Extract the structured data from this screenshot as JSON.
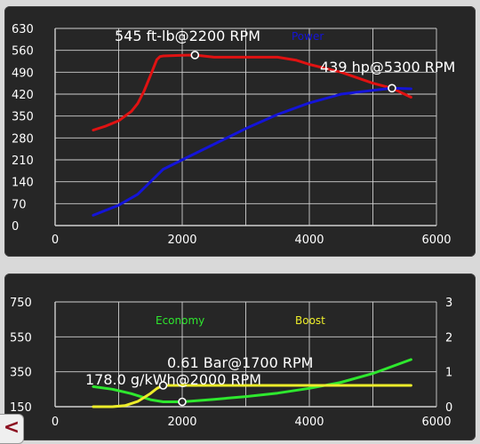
{
  "colors": {
    "torque": "#e01212",
    "power": "#1414d8",
    "economy": "#2ee82e",
    "boost": "#ecec2a",
    "grid": "#d0d0d0",
    "text": "#ffffff"
  },
  "back_button": {
    "label": "<"
  },
  "chart_data": [
    {
      "type": "line",
      "x_ticks": [
        "0",
        "2000",
        "4000",
        "6000"
      ],
      "y_ticks": [
        "0",
        "70",
        "140",
        "210",
        "280",
        "350",
        "420",
        "490",
        "560",
        "630"
      ],
      "xlim": [
        0,
        6000
      ],
      "ylim": [
        0,
        630
      ],
      "grid": true,
      "legend": {
        "power_label": "Power"
      },
      "series": [
        {
          "key": "torque",
          "x": [
            600,
            800,
            1000,
            1200,
            1300,
            1400,
            1500,
            1600,
            1650,
            1700,
            2000,
            2200,
            2500,
            3000,
            3500,
            3800,
            4000,
            4500,
            5000,
            5300,
            5600
          ],
          "y": [
            305,
            318,
            335,
            365,
            390,
            430,
            480,
            530,
            540,
            542,
            544,
            545,
            538,
            538,
            538,
            528,
            515,
            490,
            455,
            439,
            410
          ]
        },
        {
          "name": "Power",
          "key": "power",
          "x": [
            600,
            1000,
            1300,
            1500,
            1700,
            2000,
            2500,
            3000,
            3500,
            4000,
            4500,
            5000,
            5300,
            5600
          ],
          "y": [
            33,
            65,
            100,
            140,
            180,
            210,
            260,
            310,
            355,
            392,
            420,
            432,
            439,
            437
          ]
        }
      ],
      "annotations": [
        {
          "text": "545 ft-lb@2200 RPM",
          "x": 2200,
          "y": 545
        },
        {
          "text": "439 hp@5300 RPM",
          "x": 5300,
          "y": 439
        }
      ]
    },
    {
      "type": "line",
      "x_ticks": [
        "0",
        "2000",
        "4000",
        "6000"
      ],
      "y_left_ticks": [
        "150",
        "350",
        "550",
        "750"
      ],
      "y_right_ticks": [
        "0",
        "1",
        "2",
        "3"
      ],
      "xlim": [
        0,
        6000
      ],
      "ylim_left": [
        150,
        750
      ],
      "ylim_right": [
        0,
        3
      ],
      "grid": true,
      "legend": {
        "economy_label": "Economy",
        "boost_label": "Boost"
      },
      "series": [
        {
          "name": "Economy",
          "key": "economy",
          "axis": "left",
          "x": [
            600,
            900,
            1200,
            1500,
            1700,
            2000,
            2500,
            3000,
            3500,
            4000,
            4500,
            5000,
            5600
          ],
          "y": [
            265,
            250,
            225,
            190,
            178,
            178,
            192,
            208,
            228,
            255,
            290,
            340,
            420
          ]
        },
        {
          "name": "Boost",
          "key": "boost",
          "axis": "right",
          "x": [
            600,
            900,
            1100,
            1300,
            1500,
            1600,
            1700,
            2000,
            3000,
            4000,
            5000,
            5600
          ],
          "y": [
            0.0,
            0.0,
            0.03,
            0.15,
            0.38,
            0.52,
            0.61,
            0.61,
            0.61,
            0.61,
            0.61,
            0.61
          ]
        }
      ],
      "annotations": [
        {
          "text": "0.61 Bar@1700 RPM",
          "series": "boost",
          "x": 1700,
          "y": 0.61
        },
        {
          "text": "178.0 g/kWh@2000 RPM",
          "series": "economy",
          "x": 2000,
          "y": 178
        }
      ]
    }
  ]
}
